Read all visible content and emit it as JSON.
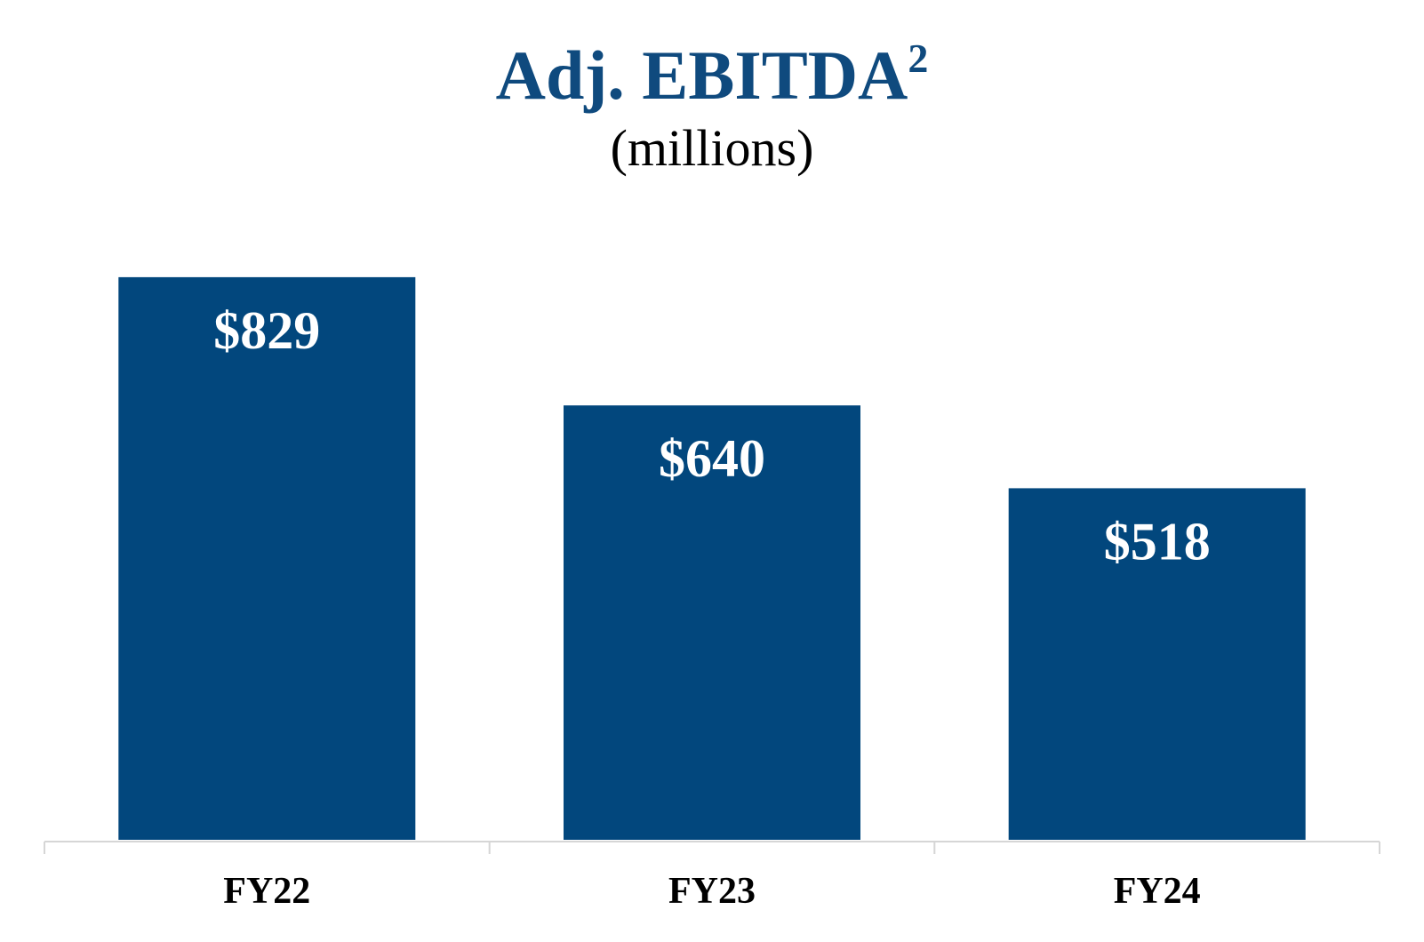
{
  "chart_data": {
    "type": "bar",
    "title": "Adj. EBITDA",
    "title_superscript": "2",
    "subtitle": "(millions)",
    "categories": [
      "FY22",
      "FY23",
      "FY24"
    ],
    "values": [
      829,
      640,
      518
    ],
    "data_labels": [
      "$829",
      "$640",
      "$518"
    ],
    "ylim": [
      0,
      850
    ],
    "grid": false,
    "legend": "none",
    "colors": {
      "bar": "#02477D",
      "title": "#0F4A7E",
      "subtitle": "#000000",
      "data_label": "#FFFFFF",
      "axis": "#D6D6D6",
      "tick_label": "#000000"
    }
  }
}
